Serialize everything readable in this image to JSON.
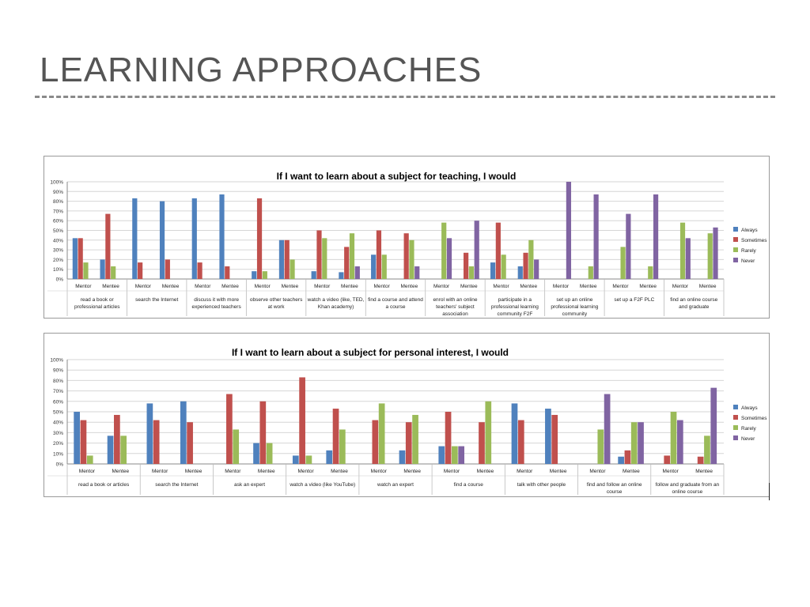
{
  "page": {
    "title": "LEARNING APPROACHES"
  },
  "legend_colors": [
    "#4f81bd",
    "#c0504d",
    "#9bbb59",
    "#8064a2"
  ],
  "chart_data": [
    {
      "type": "bar",
      "title": "If I want to learn about a subject for teaching, I would",
      "ylim": [
        0,
        100
      ],
      "yticks": [
        "0%",
        "10%",
        "20%",
        "30%",
        "40%",
        "50%",
        "60%",
        "70%",
        "80%",
        "90%",
        "100%"
      ],
      "legend": [
        "Always",
        "Sometimes",
        "Rarely",
        "Never"
      ],
      "legend_position": "right",
      "sub_categories": [
        "Mentor",
        "Mentee"
      ],
      "groups": [
        {
          "label": [
            "read a book or",
            "professional articles"
          ],
          "bars": [
            [
              42,
              42,
              17,
              0
            ],
            [
              20,
              67,
              13,
              0
            ]
          ]
        },
        {
          "label": [
            "search the Internet"
          ],
          "bars": [
            [
              83,
              17,
              0,
              0
            ],
            [
              80,
              20,
              0,
              0
            ]
          ]
        },
        {
          "label": [
            "discuss it with more",
            "experienced teachers"
          ],
          "bars": [
            [
              83,
              17,
              0,
              0
            ],
            [
              87,
              13,
              0,
              0
            ]
          ]
        },
        {
          "label": [
            "observe other teachers",
            "at work"
          ],
          "bars": [
            [
              8,
              83,
              8,
              0
            ],
            [
              40,
              40,
              20,
              0
            ]
          ]
        },
        {
          "label": [
            "watch a video (like, TED,",
            "Khan academy)"
          ],
          "bars": [
            [
              8,
              50,
              42,
              0
            ],
            [
              7,
              33,
              47,
              13
            ]
          ]
        },
        {
          "label": [
            "find a course and attend",
            "a course"
          ],
          "bars": [
            [
              25,
              50,
              25,
              0
            ],
            [
              0,
              47,
              40,
              13
            ]
          ]
        },
        {
          "label": [
            "enrol with an online",
            "teachers' subject",
            "association"
          ],
          "bars": [
            [
              0,
              0,
              58,
              42
            ],
            [
              0,
              27,
              13,
              60
            ]
          ]
        },
        {
          "label": [
            "participate in a",
            "professional learning",
            "community F2F"
          ],
          "bars": [
            [
              17,
              58,
              25,
              0
            ],
            [
              13,
              27,
              40,
              20
            ]
          ]
        },
        {
          "label": [
            "set up an online",
            "professional learning",
            "community"
          ],
          "bars": [
            [
              0,
              0,
              0,
              100
            ],
            [
              0,
              0,
              13,
              87
            ]
          ]
        },
        {
          "label": [
            "set up a F2F PLC"
          ],
          "bars": [
            [
              0,
              0,
              33,
              67
            ],
            [
              0,
              0,
              13,
              87
            ]
          ]
        },
        {
          "label": [
            "find an online course",
            "and graduate"
          ],
          "bars": [
            [
              0,
              0,
              58,
              42
            ],
            [
              0,
              0,
              47,
              53
            ]
          ]
        }
      ]
    },
    {
      "type": "bar",
      "title": "If I want to learn about a subject for personal interest, I would",
      "ylim": [
        0,
        100
      ],
      "yticks": [
        "0%",
        "10%",
        "20%",
        "30%",
        "40%",
        "50%",
        "60%",
        "70%",
        "80%",
        "90%",
        "100%"
      ],
      "legend": [
        "Always",
        "Sometimes",
        "Rarely",
        "Never"
      ],
      "legend_position": "right",
      "sub_categories": [
        "Mentor",
        "Mentee"
      ],
      "groups": [
        {
          "label": [
            "read a book or articles"
          ],
          "bars": [
            [
              50,
              42,
              8,
              0
            ],
            [
              27,
              47,
              27,
              0
            ]
          ]
        },
        {
          "label": [
            "search the Internet"
          ],
          "bars": [
            [
              58,
              42,
              0,
              0
            ],
            [
              60,
              40,
              0,
              0
            ]
          ]
        },
        {
          "label": [
            "ask an expert"
          ],
          "bars": [
            [
              0,
              67,
              33,
              0
            ],
            [
              20,
              60,
              20,
              0
            ]
          ]
        },
        {
          "label": [
            "watch a video (like YouTube)"
          ],
          "bars": [
            [
              8,
              83,
              8,
              0
            ],
            [
              13,
              53,
              33,
              0
            ]
          ]
        },
        {
          "label": [
            "watch an expert"
          ],
          "bars": [
            [
              0,
              42,
              58,
              0
            ],
            [
              13,
              40,
              47,
              0
            ]
          ]
        },
        {
          "label": [
            "find a course"
          ],
          "bars": [
            [
              17,
              50,
              17,
              17
            ],
            [
              0,
              40,
              60,
              0
            ]
          ]
        },
        {
          "label": [
            "talk with other people"
          ],
          "bars": [
            [
              58,
              42,
              0,
              0
            ],
            [
              53,
              47,
              0,
              0
            ]
          ]
        },
        {
          "label": [
            "find and follow an online",
            "course"
          ],
          "bars": [
            [
              0,
              0,
              33,
              67
            ],
            [
              7,
              13,
              40,
              40
            ]
          ]
        },
        {
          "label": [
            "follow and graduate from an",
            "online course"
          ],
          "bars": [
            [
              0,
              8,
              50,
              42
            ],
            [
              0,
              7,
              27,
              73
            ]
          ]
        }
      ]
    }
  ]
}
